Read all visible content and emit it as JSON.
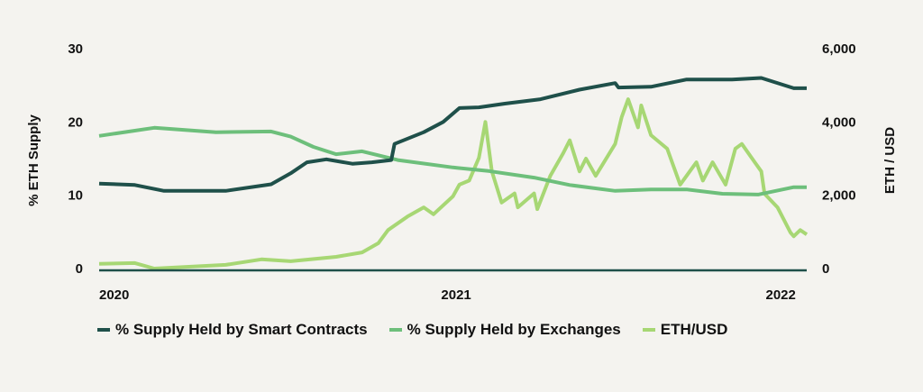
{
  "chart_data": {
    "type": "line",
    "title": "",
    "ylabel": "% ETH Supply",
    "y2label": "ETH / USD",
    "xlim": [
      2019.9,
      2022.08
    ],
    "ylim": [
      0,
      30
    ],
    "y2lim": [
      0,
      6000
    ],
    "x_ticks": [
      {
        "value": 2020,
        "label": "2020"
      },
      {
        "value": 2021,
        "label": "2021"
      },
      {
        "value": 2022,
        "label": "2022"
      }
    ],
    "y_ticks": [
      {
        "value": 0,
        "label": "0"
      },
      {
        "value": 10,
        "label": "10"
      },
      {
        "value": 20,
        "label": "20"
      },
      {
        "value": 30,
        "label": "30"
      }
    ],
    "y2_ticks": [
      {
        "value": 0,
        "label": "0"
      },
      {
        "value": 2000,
        "label": "2,000"
      },
      {
        "value": 4000,
        "label": "4,000"
      },
      {
        "value": 6000,
        "label": "6,000"
      }
    ],
    "grid": false,
    "legend_position": "bottom",
    "series": [
      {
        "name": "% Supply Held by Smart Contracts",
        "axis": "left",
        "color": "#1f504a",
        "x": [
          2019.9,
          2020.01,
          2020.1,
          2020.29,
          2020.43,
          2020.49,
          2020.54,
          2020.6,
          2020.68,
          2020.74,
          2020.8,
          2020.81,
          2020.9,
          2020.96,
          2021.01,
          2021.07,
          2021.15,
          2021.26,
          2021.38,
          2021.49,
          2021.5,
          2021.6,
          2021.71,
          2021.85,
          2021.94,
          2022.04,
          2022.08
        ],
        "y": [
          11.6,
          11.4,
          10.6,
          10.6,
          11.5,
          13,
          14.5,
          14.9,
          14.3,
          14.5,
          14.8,
          17,
          18.6,
          20,
          21.9,
          22,
          22.5,
          23.1,
          24.4,
          25.3,
          24.7,
          24.8,
          25.8,
          25.8,
          26,
          24.6,
          24.6
        ]
      },
      {
        "name": "% Supply Held by Exchanges",
        "axis": "left",
        "color": "#6dbf7b",
        "x": [
          2019.9,
          2020.07,
          2020.26,
          2020.43,
          2020.49,
          2020.56,
          2020.63,
          2020.71,
          2020.82,
          2020.99,
          2021.1,
          2021.24,
          2021.35,
          2021.49,
          2021.6,
          2021.71,
          2021.82,
          2021.93,
          2022.04,
          2022.08
        ],
        "y": [
          18.1,
          19.2,
          18.6,
          18.7,
          18,
          16.6,
          15.6,
          16,
          14.8,
          13.8,
          13.3,
          12.4,
          11.4,
          10.6,
          10.8,
          10.8,
          10.2,
          10.1,
          11.1,
          11.1
        ]
      },
      {
        "name": "ETH/USD",
        "axis": "right",
        "color": "#a7d774",
        "x": [
          2019.9,
          2020.01,
          2020.07,
          2020.29,
          2020.4,
          2020.49,
          2020.63,
          2020.71,
          2020.76,
          2020.79,
          2020.85,
          2020.9,
          2020.93,
          2020.99,
          2021.01,
          2021.04,
          2021.07,
          2021.09,
          2021.11,
          2021.14,
          2021.18,
          2021.19,
          2021.24,
          2021.25,
          2021.29,
          2021.33,
          2021.35,
          2021.38,
          2021.4,
          2021.43,
          2021.49,
          2021.51,
          2021.53,
          2021.56,
          2021.57,
          2021.6,
          2021.65,
          2021.69,
          2021.74,
          2021.76,
          2021.79,
          2021.83,
          2021.86,
          2021.88,
          2021.92,
          2021.94,
          2021.95,
          2021.99,
          2022.03,
          2022.04,
          2022.06,
          2022.08
        ],
        "y": [
          130,
          150,
          0,
          100,
          250,
          200,
          320,
          440,
          690,
          1050,
          1420,
          1670,
          1480,
          1970,
          2290,
          2400,
          3020,
          4000,
          2650,
          1800,
          2050,
          1670,
          2050,
          1620,
          2530,
          3150,
          3500,
          2650,
          3000,
          2530,
          3400,
          4130,
          4620,
          3850,
          4450,
          3640,
          3270,
          2290,
          2900,
          2400,
          2900,
          2290,
          3270,
          3400,
          2900,
          2650,
          2040,
          1670,
          980,
          880,
          1050,
          930
        ]
      }
    ]
  }
}
